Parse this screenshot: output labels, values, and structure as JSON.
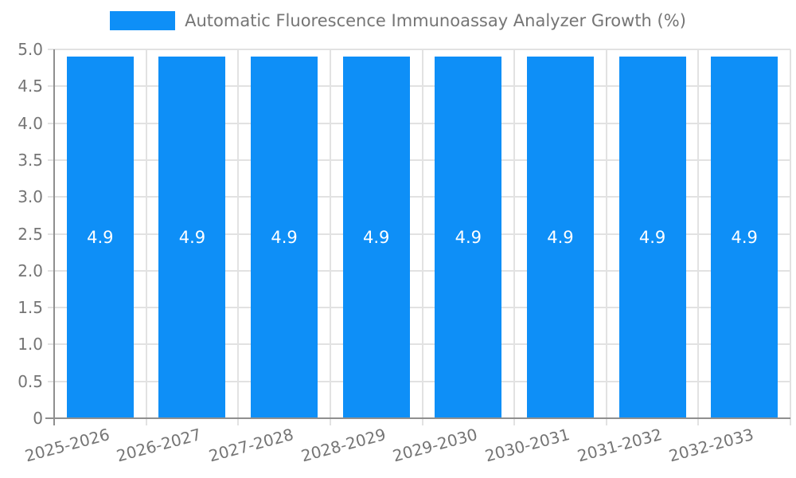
{
  "legend": {
    "label": "Automatic Fluorescence Immunoassay Analyzer Growth (%)"
  },
  "colors": {
    "bar": "#0e8ff7",
    "grid": "#e2e2e2",
    "axis": "#8f8f8f",
    "tick_label": "#757575",
    "legend_text": "#757575",
    "value_label": "#ffffff",
    "background": "#ffffff"
  },
  "chart_data": {
    "type": "bar",
    "title": "",
    "categories": [
      "2025-2026",
      "2026-2027",
      "2027-2028",
      "2028-2029",
      "2029-2030",
      "2030-2031",
      "2031-2032",
      "2032-2033"
    ],
    "series": [
      {
        "name": "Automatic Fluorescence Immunoassay Analyzer Growth (%)",
        "values": [
          4.9,
          4.9,
          4.9,
          4.9,
          4.9,
          4.9,
          4.9,
          4.9
        ]
      }
    ],
    "value_labels": [
      "4.9",
      "4.9",
      "4.9",
      "4.9",
      "4.9",
      "4.9",
      "4.9",
      "4.9"
    ],
    "xlabel": "",
    "ylabel": "",
    "ylim": [
      0,
      5
    ],
    "ytick_step": 0.5,
    "ytick_labels": [
      "0",
      "0.5",
      "1.0",
      "1.5",
      "2.0",
      "2.5",
      "3.0",
      "3.5",
      "4.0",
      "4.5",
      "5.0"
    ],
    "grid": "both",
    "legend_position": "top-center",
    "xtick_rotation_deg": 15
  }
}
